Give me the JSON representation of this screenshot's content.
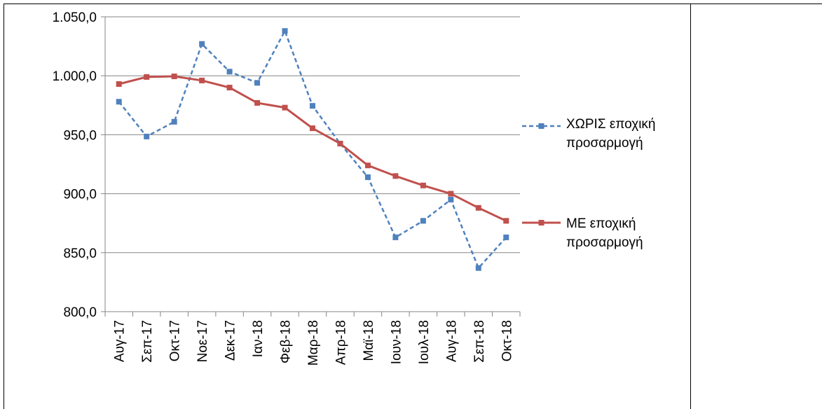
{
  "chart_data": {
    "type": "line",
    "categories": [
      "Αυγ-17",
      "Σεπ-17",
      "Οκτ-17",
      "Νοε-17",
      "Δεκ-17",
      "Ιαν-18",
      "Φεβ-18",
      "Μαρ-18",
      "Απρ-18",
      "Μαϊ-18",
      "Ιουν-18",
      "Ιουλ-18",
      "Αυγ-18",
      "Σεπ-18",
      "Οκτ-18"
    ],
    "series": [
      {
        "name": "ΧΩΡΙΣ εποχική προσαρμογή",
        "color": "#4f81bd",
        "dashed": true,
        "values": [
          978,
          948.5,
          961,
          1027,
          1003.5,
          994,
          1038,
          974.5,
          942.5,
          914,
          863,
          877,
          895,
          837,
          863
        ]
      },
      {
        "name": "ΜΕ εποχική προσαρμογή",
        "color": "#c0504d",
        "dashed": false,
        "values": [
          993,
          999,
          999.5,
          996,
          990,
          977,
          973,
          955.5,
          942.5,
          924,
          915,
          907,
          900,
          888,
          877
        ]
      }
    ],
    "ylim": [
      800,
      1050
    ],
    "yticks": [
      {
        "value": 800,
        "label": "800,0"
      },
      {
        "value": 850,
        "label": "850,0"
      },
      {
        "value": 900,
        "label": "900,0"
      },
      {
        "value": 950,
        "label": "950,0"
      },
      {
        "value": 1000,
        "label": "1.000,0"
      },
      {
        "value": 1050,
        "label": "1.050,0"
      }
    ],
    "grid": true
  }
}
